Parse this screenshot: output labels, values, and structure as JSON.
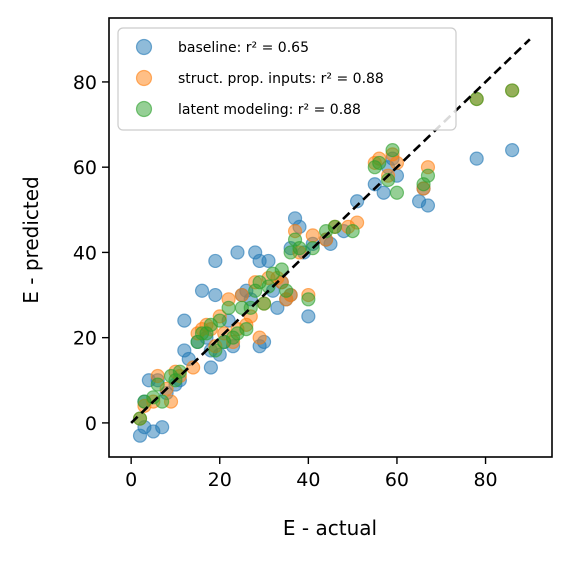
{
  "chart_data": {
    "type": "scatter",
    "title": "",
    "xlabel": "E - actual",
    "ylabel": "E - predicted",
    "xlim": [
      -5,
      95
    ],
    "ylim": [
      -8,
      95
    ],
    "x_ticks": [
      0,
      20,
      40,
      60,
      80
    ],
    "y_ticks": [
      0,
      20,
      40,
      60,
      80
    ],
    "legend_position": "top-left",
    "reference_line": {
      "style": "dashed",
      "color": "#000000",
      "from": [
        0,
        0
      ],
      "to": [
        90,
        90
      ]
    },
    "series": [
      {
        "name": "baseline",
        "legend_label": "baseline: r² = 0.65",
        "color": "#1f77b4",
        "points": [
          [
            2,
            -3
          ],
          [
            3,
            -1
          ],
          [
            5,
            -2
          ],
          [
            7,
            -1
          ],
          [
            3,
            5
          ],
          [
            4,
            10
          ],
          [
            6,
            10
          ],
          [
            8,
            7
          ],
          [
            10,
            9
          ],
          [
            11,
            10
          ],
          [
            12,
            24
          ],
          [
            12,
            17
          ],
          [
            13,
            15
          ],
          [
            15,
            19
          ],
          [
            16,
            31
          ],
          [
            17,
            20
          ],
          [
            18,
            17
          ],
          [
            18,
            13
          ],
          [
            19,
            30
          ],
          [
            19,
            38
          ],
          [
            20,
            16
          ],
          [
            21,
            19
          ],
          [
            22,
            24
          ],
          [
            23,
            18
          ],
          [
            24,
            40
          ],
          [
            25,
            30
          ],
          [
            26,
            31
          ],
          [
            27,
            29
          ],
          [
            28,
            40
          ],
          [
            29,
            18
          ],
          [
            29,
            38
          ],
          [
            30,
            19
          ],
          [
            31,
            38
          ],
          [
            32,
            31
          ],
          [
            33,
            27
          ],
          [
            34,
            33
          ],
          [
            35,
            29
          ],
          [
            36,
            30
          ],
          [
            36,
            41
          ],
          [
            37,
            48
          ],
          [
            38,
            46
          ],
          [
            39,
            40
          ],
          [
            40,
            25
          ],
          [
            41,
            42
          ],
          [
            44,
            43
          ],
          [
            45,
            42
          ],
          [
            48,
            45
          ],
          [
            51,
            52
          ],
          [
            55,
            56
          ],
          [
            57,
            54
          ],
          [
            58,
            60
          ],
          [
            59,
            62
          ],
          [
            60,
            58
          ],
          [
            65,
            52
          ],
          [
            66,
            55
          ],
          [
            67,
            51
          ],
          [
            78,
            62
          ],
          [
            86,
            64
          ]
        ]
      },
      {
        "name": "struct. prop. inputs",
        "legend_label": "struct. prop. inputs: r² = 0.88",
        "color": "#ff7f0e",
        "points": [
          [
            2,
            1
          ],
          [
            3,
            4
          ],
          [
            5,
            5
          ],
          [
            6,
            11
          ],
          [
            8,
            8
          ],
          [
            9,
            5
          ],
          [
            10,
            12
          ],
          [
            11,
            11
          ],
          [
            14,
            13
          ],
          [
            15,
            21
          ],
          [
            16,
            22
          ],
          [
            17,
            23
          ],
          [
            18,
            22
          ],
          [
            19,
            18
          ],
          [
            20,
            25
          ],
          [
            21,
            21
          ],
          [
            22,
            29
          ],
          [
            23,
            19
          ],
          [
            24,
            22
          ],
          [
            25,
            30
          ],
          [
            26,
            23
          ],
          [
            27,
            25
          ],
          [
            28,
            33
          ],
          [
            29,
            20
          ],
          [
            30,
            28
          ],
          [
            31,
            34
          ],
          [
            33,
            34
          ],
          [
            34,
            33
          ],
          [
            35,
            29
          ],
          [
            36,
            30
          ],
          [
            37,
            45
          ],
          [
            38,
            40
          ],
          [
            40,
            30
          ],
          [
            41,
            44
          ],
          [
            44,
            43
          ],
          [
            46,
            46
          ],
          [
            49,
            46
          ],
          [
            51,
            47
          ],
          [
            55,
            61
          ],
          [
            56,
            62
          ],
          [
            58,
            58
          ],
          [
            59,
            63
          ],
          [
            60,
            61
          ],
          [
            66,
            55
          ],
          [
            67,
            60
          ],
          [
            78,
            76
          ],
          [
            86,
            78
          ]
        ]
      },
      {
        "name": "latent modeling",
        "legend_label": "latent modeling: r² = 0.88",
        "color": "#2ca02c",
        "points": [
          [
            2,
            1
          ],
          [
            3,
            5
          ],
          [
            5,
            6
          ],
          [
            6,
            9
          ],
          [
            7,
            5
          ],
          [
            9,
            11
          ],
          [
            10,
            10
          ],
          [
            11,
            12
          ],
          [
            15,
            19
          ],
          [
            16,
            21
          ],
          [
            17,
            21
          ],
          [
            18,
            23
          ],
          [
            19,
            17
          ],
          [
            20,
            24
          ],
          [
            21,
            19
          ],
          [
            22,
            27
          ],
          [
            23,
            20
          ],
          [
            24,
            21
          ],
          [
            25,
            27
          ],
          [
            26,
            22
          ],
          [
            27,
            27
          ],
          [
            28,
            31
          ],
          [
            29,
            33
          ],
          [
            30,
            28
          ],
          [
            31,
            32
          ],
          [
            32,
            35
          ],
          [
            34,
            36
          ],
          [
            35,
            31
          ],
          [
            36,
            40
          ],
          [
            37,
            43
          ],
          [
            38,
            41
          ],
          [
            40,
            29
          ],
          [
            41,
            41
          ],
          [
            44,
            45
          ],
          [
            46,
            46
          ],
          [
            50,
            45
          ],
          [
            55,
            60
          ],
          [
            56,
            61
          ],
          [
            58,
            57
          ],
          [
            59,
            64
          ],
          [
            60,
            54
          ],
          [
            66,
            56
          ],
          [
            67,
            58
          ],
          [
            78,
            76
          ],
          [
            86,
            78
          ]
        ]
      }
    ]
  }
}
